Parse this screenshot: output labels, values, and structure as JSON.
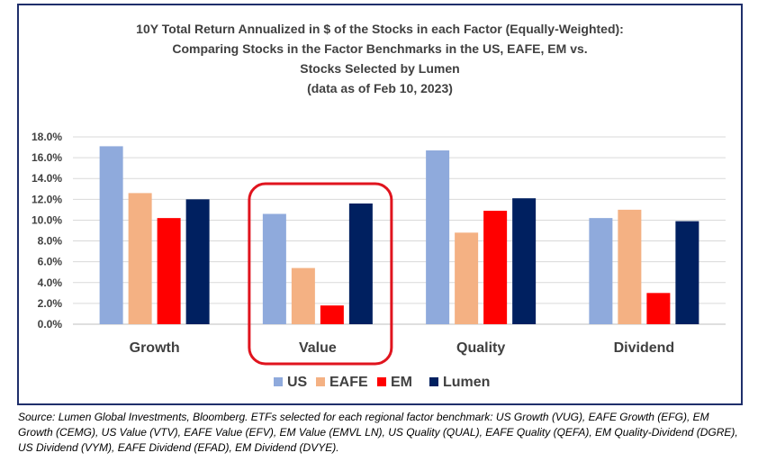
{
  "chart_data": {
    "type": "bar",
    "title_lines": [
      "10Y Total Return Annualized in $ of the Stocks in each Factor (Equally-Weighted):",
      "Comparing Stocks in the Factor Benchmarks in the US, EAFE, EM vs.",
      "Stocks Selected by Lumen",
      "(data as of Feb 10, 2023)"
    ],
    "categories": [
      "Growth",
      "Value",
      "Quality",
      "Dividend"
    ],
    "series": [
      {
        "name": "US",
        "color": "#8faadc",
        "values": [
          17.1,
          10.6,
          16.7,
          10.2
        ]
      },
      {
        "name": "EAFE",
        "color": "#f4b183",
        "values": [
          12.6,
          5.4,
          8.8,
          11.0
        ]
      },
      {
        "name": "EM",
        "color": "#ff0000",
        "values": [
          10.2,
          1.8,
          10.9,
          3.0
        ]
      },
      {
        "name": "Lumen",
        "color": "#002060",
        "values": [
          12.0,
          11.6,
          12.1,
          9.9
        ]
      }
    ],
    "ylim": [
      0,
      18
    ],
    "yticks": [
      "0.0%",
      "2.0%",
      "4.0%",
      "6.0%",
      "8.0%",
      "10.0%",
      "12.0%",
      "14.0%",
      "16.0%",
      "18.0%"
    ],
    "grid": true,
    "legend_position": "bottom",
    "highlighted_category": "Value",
    "highlight_color": "#e0141e"
  },
  "source_note": "Source: Lumen Global Investments, Bloomberg. ETFs selected for each regional factor benchmark: US Growth (VUG), EAFE Growth (EFG), EM Growth (CEMG), US Value (VTV), EAFE Value (EFV), EM Value (EMVL LN), US Quality (QUAL), EAFE Quality (QEFA), EM Quality-Dividend (DGRE), US Dividend (VYM), EAFE Dividend (EFAD), EM Dividend (DVYE)."
}
